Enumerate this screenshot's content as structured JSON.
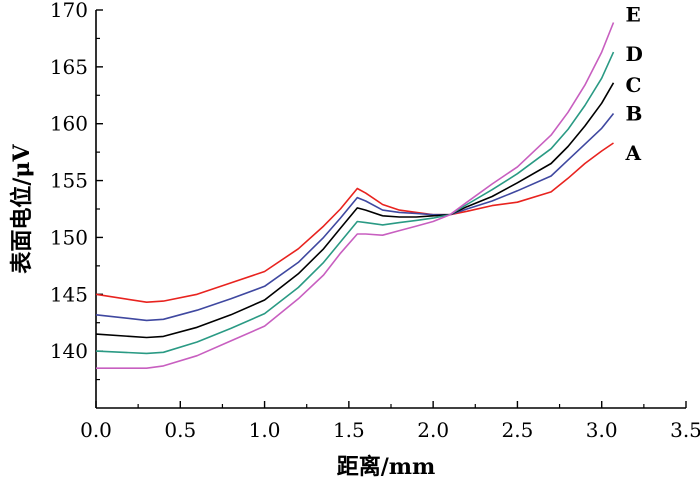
{
  "chart_data": {
    "type": "line",
    "xlabel": "距离/mm",
    "ylabel": "表面电位/μV",
    "xlim": [
      0,
      3.5
    ],
    "ylim": [
      135,
      170
    ],
    "xticks": [
      0.0,
      0.5,
      1.0,
      1.5,
      2.0,
      2.5,
      3.0,
      3.5
    ],
    "xtick_labels": [
      "0.0",
      "0.5",
      "1.0",
      "1.5",
      "2.0",
      "2.5",
      "3.0",
      "3.5"
    ],
    "yticks": [
      140,
      145,
      150,
      155,
      160,
      165,
      170
    ],
    "ytick_labels": [
      "140",
      "145",
      "150",
      "155",
      "160",
      "165",
      "170"
    ],
    "grid": false,
    "series": [
      {
        "name": "A",
        "color": "#e8231f",
        "x": [
          0.0,
          0.3,
          0.4,
          0.6,
          0.8,
          1.0,
          1.2,
          1.35,
          1.45,
          1.55,
          1.6,
          1.7,
          1.8,
          1.9,
          2.0,
          2.1,
          2.2,
          2.35,
          2.5,
          2.7,
          2.8,
          2.9,
          3.0,
          3.07
        ],
        "y": [
          145.0,
          144.3,
          144.4,
          145.0,
          146.0,
          147.0,
          149.0,
          151.0,
          152.5,
          154.3,
          153.9,
          152.9,
          152.4,
          152.2,
          152.0,
          152.0,
          152.3,
          152.8,
          153.1,
          154.0,
          155.2,
          156.5,
          157.6,
          158.3
        ]
      },
      {
        "name": "B",
        "color": "#3f48a0",
        "x": [
          0.0,
          0.3,
          0.4,
          0.6,
          0.8,
          1.0,
          1.2,
          1.35,
          1.45,
          1.55,
          1.6,
          1.7,
          1.8,
          1.9,
          2.0,
          2.1,
          2.2,
          2.35,
          2.5,
          2.7,
          2.8,
          2.9,
          3.0,
          3.07
        ],
        "y": [
          143.2,
          142.7,
          142.8,
          143.6,
          144.6,
          145.7,
          147.8,
          150.0,
          151.7,
          153.5,
          153.2,
          152.4,
          152.2,
          152.1,
          152.0,
          152.0,
          152.5,
          153.2,
          154.1,
          155.4,
          156.8,
          158.2,
          159.6,
          160.9
        ]
      },
      {
        "name": "C",
        "color": "#000000",
        "x": [
          0.0,
          0.3,
          0.4,
          0.6,
          0.8,
          1.0,
          1.2,
          1.35,
          1.45,
          1.55,
          1.6,
          1.7,
          1.8,
          1.9,
          2.0,
          2.1,
          2.2,
          2.35,
          2.5,
          2.7,
          2.8,
          2.9,
          3.0,
          3.07
        ],
        "y": [
          141.5,
          141.2,
          141.3,
          142.1,
          143.2,
          144.5,
          146.8,
          149.0,
          150.8,
          152.6,
          152.4,
          151.9,
          151.8,
          151.8,
          151.9,
          152.0,
          152.7,
          153.6,
          154.8,
          156.5,
          158.0,
          159.8,
          161.8,
          163.6
        ]
      },
      {
        "name": "D",
        "color": "#2a9a84",
        "x": [
          0.0,
          0.3,
          0.4,
          0.6,
          0.8,
          1.0,
          1.2,
          1.35,
          1.45,
          1.55,
          1.6,
          1.7,
          1.8,
          1.9,
          2.0,
          2.1,
          2.2,
          2.35,
          2.5,
          2.7,
          2.8,
          2.9,
          3.0,
          3.07
        ],
        "y": [
          140.0,
          139.8,
          139.9,
          140.8,
          142.0,
          143.3,
          145.6,
          147.8,
          149.6,
          151.4,
          151.3,
          151.1,
          151.3,
          151.5,
          151.7,
          152.0,
          152.9,
          154.2,
          155.6,
          157.8,
          159.5,
          161.6,
          164.0,
          166.3
        ]
      },
      {
        "name": "E",
        "color": "#c85fc0",
        "x": [
          0.0,
          0.3,
          0.4,
          0.6,
          0.8,
          1.0,
          1.2,
          1.35,
          1.45,
          1.55,
          1.6,
          1.7,
          1.8,
          1.9,
          2.0,
          2.1,
          2.2,
          2.35,
          2.5,
          2.7,
          2.8,
          2.9,
          3.0,
          3.07
        ],
        "y": [
          138.5,
          138.5,
          138.7,
          139.6,
          140.9,
          142.2,
          144.6,
          146.7,
          148.6,
          150.3,
          150.3,
          150.2,
          150.6,
          151.0,
          151.4,
          152.0,
          153.1,
          154.7,
          156.2,
          159.0,
          161.0,
          163.4,
          166.3,
          168.9
        ]
      }
    ]
  }
}
